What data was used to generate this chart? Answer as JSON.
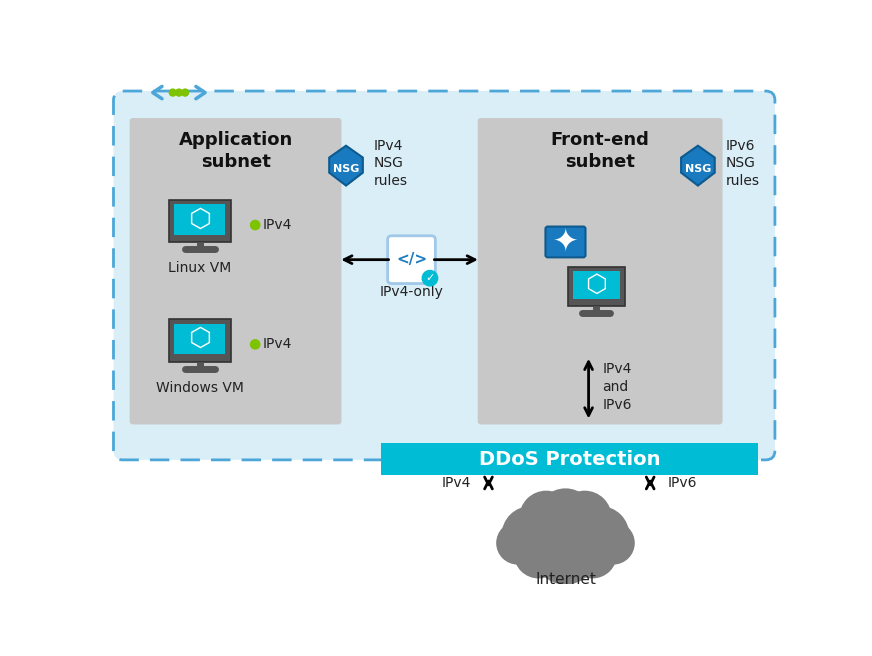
{
  "bg_outer": "#ffffff",
  "bg_main_rect": "#daeef8",
  "bg_app_subnet": "#c8c8c8",
  "bg_front_subnet": "#c8c8c8",
  "bg_ddos": "#00bcd4",
  "bg_cloud": "#808080",
  "dashed_border_color": "#4da6d8",
  "arrow_color": "#000000",
  "nsg_shield_color": "#1a7abf",
  "vm_screen_color": "#00bcd4",
  "green_dot_color": "#7dc300",
  "lock_color": "#1a7abf",
  "code_box_color": "#ffffff",
  "code_box_border": "#a0c8e8",
  "check_color": "#00bcd4",
  "title_app": "Application\nsubnet",
  "title_front": "Front-end\nsubnet",
  "label_linux": "Linux VM",
  "label_windows": "Windows VM",
  "label_ipv4_nsg": "IPv4\nNSG\nrules",
  "label_ipv6_nsg": "IPv6\nNSG\nrules",
  "label_ipv4_only": "IPv4-only",
  "label_ipv4_and_ipv6": "IPv4\nand\nIPv6",
  "label_ddos": "DDoS Protection",
  "label_internet": "Internet",
  "label_ipv4_bottom": "IPv4",
  "label_ipv6_bottom": "IPv6",
  "label_ipv4_vm1": "IPv4",
  "label_ipv4_vm2": "IPv4",
  "code_symbol": "</>",
  "nsg_text": "NSG",
  "figw": 8.72,
  "figh": 6.56,
  "dpi": 100
}
